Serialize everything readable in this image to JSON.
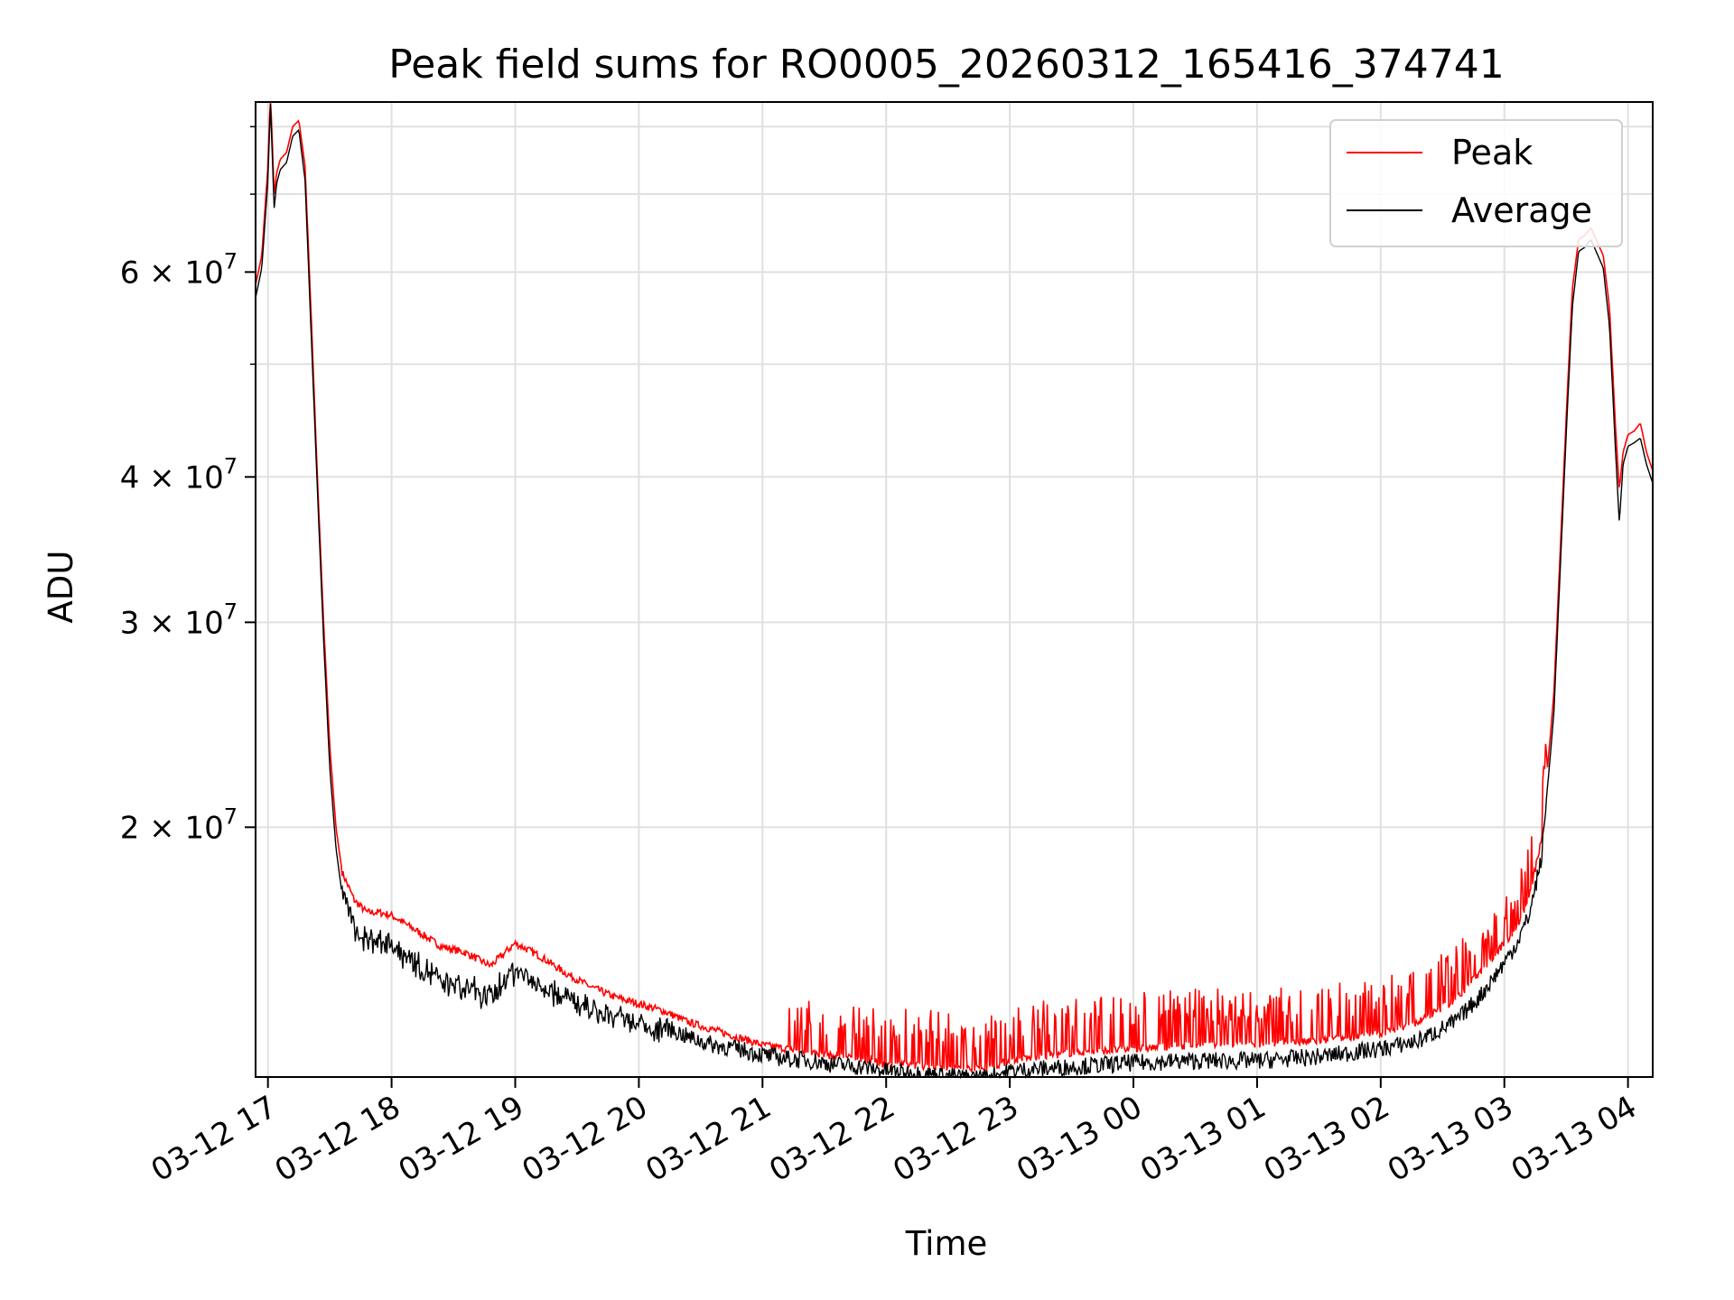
{
  "chart_data": {
    "type": "line",
    "title": "Peak field sums for RO0005_20260312_165416_374741",
    "xlabel": "Time",
    "ylabel": "ADU",
    "yscale": "log",
    "ylim": [
      12200000,
      84000000
    ],
    "xlim_hours_from_03_12_17": [
      -0.1,
      11.2
    ],
    "grid": true,
    "legend_position": "top-right",
    "x_ticks": [
      {
        "hour": 0,
        "label": "03-12 17"
      },
      {
        "hour": 1,
        "label": "03-12 18"
      },
      {
        "hour": 2,
        "label": "03-12 19"
      },
      {
        "hour": 3,
        "label": "03-12 20"
      },
      {
        "hour": 4,
        "label": "03-12 21"
      },
      {
        "hour": 5,
        "label": "03-12 22"
      },
      {
        "hour": 6,
        "label": "03-12 23"
      },
      {
        "hour": 7,
        "label": "03-13 00"
      },
      {
        "hour": 8,
        "label": "03-13 01"
      },
      {
        "hour": 9,
        "label": "03-13 02"
      },
      {
        "hour": 10,
        "label": "03-13 03"
      },
      {
        "hour": 11,
        "label": "03-13 04"
      }
    ],
    "y_ticks": [
      {
        "value": 20000000,
        "mantissa": "2",
        "exponent": "7"
      },
      {
        "value": 30000000,
        "mantissa": "3",
        "exponent": "7"
      },
      {
        "value": 40000000,
        "mantissa": "4",
        "exponent": "7"
      },
      {
        "value": 60000000,
        "mantissa": "6",
        "exponent": "7"
      }
    ],
    "y_minor_ticks": [
      50000000,
      70000000,
      80000000
    ],
    "series": [
      {
        "name": "Peak",
        "color": "#ff0000",
        "x_hours": [
          -0.1,
          -0.05,
          0.0,
          0.02,
          0.05,
          0.07,
          0.1,
          0.15,
          0.2,
          0.25,
          0.3,
          0.35,
          0.4,
          0.45,
          0.5,
          0.55,
          0.6,
          0.7,
          0.8,
          0.9,
          1.0,
          1.2,
          1.4,
          1.6,
          1.8,
          2.0,
          2.2,
          2.4,
          2.6,
          2.8,
          3.0,
          3.2,
          3.4,
          3.6,
          3.8,
          4.0,
          4.2,
          4.4,
          4.6,
          4.8,
          5.0,
          5.2,
          5.4,
          5.6,
          5.8,
          6.0,
          6.5,
          7.0,
          7.5,
          8.0,
          8.5,
          9.0,
          9.3,
          9.6,
          9.8,
          10.0,
          10.1,
          10.2,
          10.3,
          10.4,
          10.5,
          10.55,
          10.6,
          10.65,
          10.7,
          10.8,
          10.85,
          10.9,
          10.93,
          10.96,
          11.0,
          11.05,
          11.1,
          11.15,
          11.2
        ],
        "values": [
          58500000,
          62000000,
          74000000,
          86000000,
          70000000,
          73000000,
          75000000,
          76000000,
          80000000,
          81000000,
          74000000,
          55000000,
          40000000,
          30000000,
          23500000,
          20000000,
          18300000,
          17300000,
          16900000,
          16900000,
          16800000,
          16300000,
          15800000,
          15600000,
          15200000,
          15900000,
          15500000,
          15000000,
          14600000,
          14300000,
          14100000,
          13900000,
          13600000,
          13400000,
          13200000,
          13000000,
          12900000,
          12800000,
          12700000,
          12650000,
          12500000,
          12500000,
          12450000,
          12400000,
          12400000,
          12600000,
          12800000,
          12900000,
          13000000,
          13000000,
          13100000,
          13300000,
          13600000,
          14200000,
          15000000,
          15900000,
          16400000,
          17400000,
          19500000,
          26000000,
          45000000,
          58000000,
          64000000,
          64500000,
          65500000,
          62000000,
          56000000,
          44000000,
          39000000,
          42000000,
          43500000,
          43800000,
          44500000,
          42000000,
          40500000
        ]
      },
      {
        "name": "Average",
        "color": "#000000",
        "x_hours": [
          -0.1,
          -0.05,
          0.0,
          0.02,
          0.05,
          0.07,
          0.1,
          0.15,
          0.2,
          0.25,
          0.3,
          0.35,
          0.4,
          0.45,
          0.5,
          0.55,
          0.6,
          0.7,
          0.8,
          0.9,
          1.0,
          1.2,
          1.4,
          1.6,
          1.8,
          2.0,
          2.2,
          2.4,
          2.6,
          2.8,
          3.0,
          3.2,
          3.4,
          3.6,
          3.8,
          4.0,
          4.2,
          4.4,
          4.6,
          4.8,
          5.0,
          5.2,
          5.4,
          5.6,
          5.8,
          6.0,
          6.5,
          7.0,
          7.5,
          8.0,
          8.5,
          9.0,
          9.3,
          9.6,
          9.8,
          10.0,
          10.1,
          10.2,
          10.3,
          10.4,
          10.5,
          10.55,
          10.6,
          10.65,
          10.7,
          10.8,
          10.85,
          10.9,
          10.93,
          10.96,
          11.0,
          11.05,
          11.1,
          11.15,
          11.2
        ],
        "values": [
          57000000,
          60500000,
          72000000,
          84000000,
          68000000,
          71500000,
          73500000,
          74500000,
          78500000,
          79500000,
          72000000,
          53000000,
          39000000,
          29000000,
          22500000,
          19200000,
          17500000,
          16500000,
          16200000,
          16200000,
          16100000,
          15500000,
          15000000,
          14800000,
          14500000,
          15300000,
          14900000,
          14500000,
          14100000,
          13900000,
          13700000,
          13500000,
          13200000,
          13000000,
          12900000,
          12750000,
          12650000,
          12600000,
          12500000,
          12450000,
          12350000,
          12300000,
          12250000,
          12200000,
          12200000,
          12350000,
          12450000,
          12550000,
          12600000,
          12600000,
          12700000,
          12900000,
          13100000,
          13600000,
          14300000,
          15300000,
          15900000,
          16800000,
          18800000,
          25000000,
          43500000,
          56000000,
          62500000,
          63000000,
          64000000,
          60500000,
          54000000,
          42000000,
          36500000,
          41000000,
          42500000,
          42800000,
          43200000,
          41000000,
          39500000
        ]
      }
    ]
  }
}
